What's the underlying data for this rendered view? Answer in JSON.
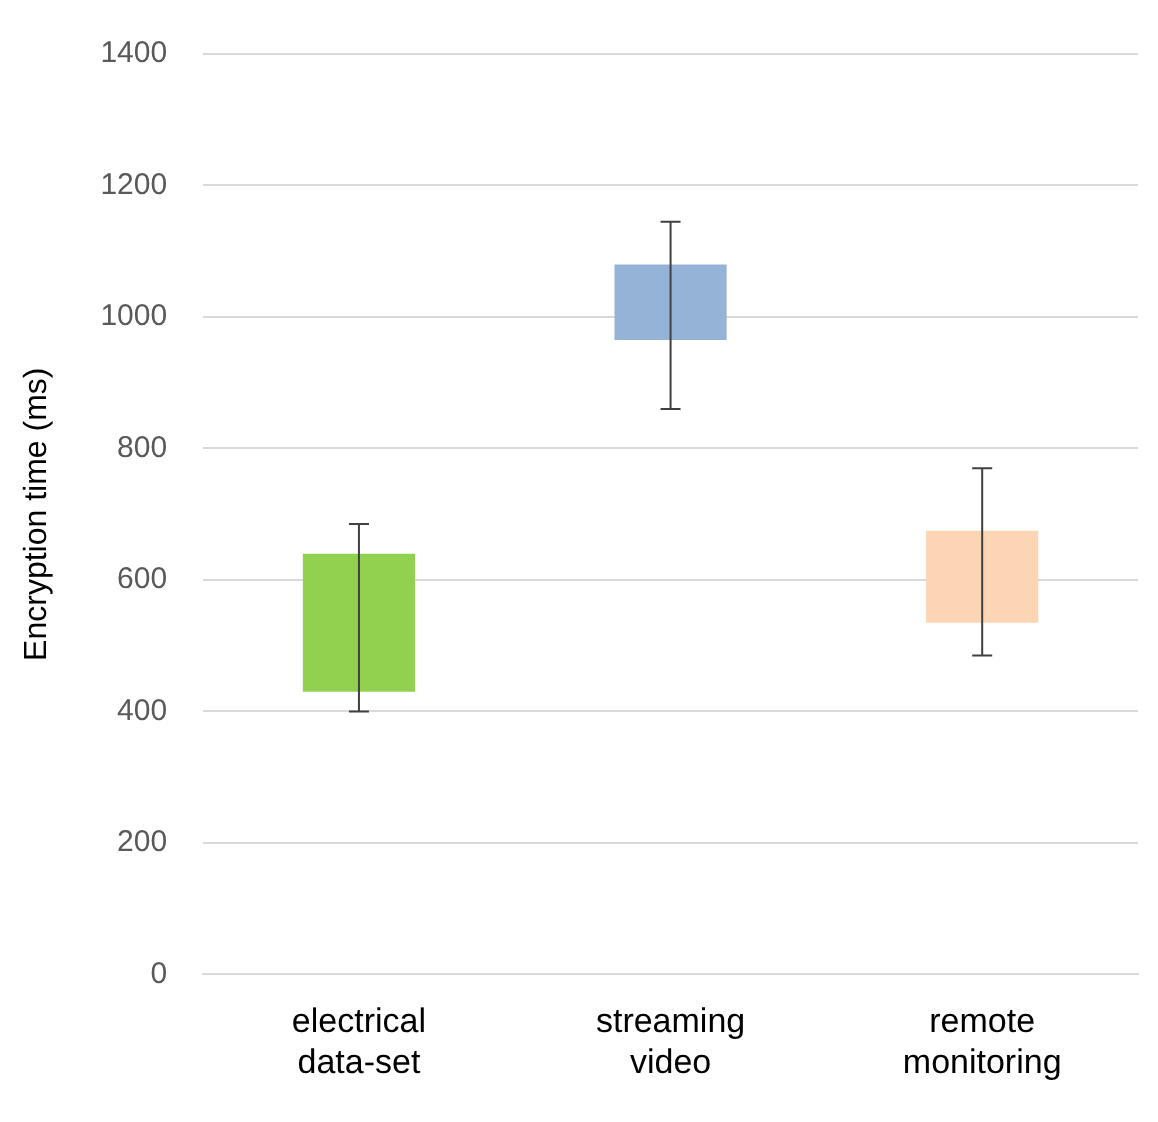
{
  "chart_data": {
    "type": "bar",
    "ylabel": "Encryption time (ms)",
    "categories": [
      "electrical data-set",
      "streaming video",
      "remote monitoring"
    ],
    "base": [
      430,
      965,
      535
    ],
    "values": [
      210,
      115,
      140
    ],
    "colors": [
      "#92d050",
      "#95b3d7",
      "#fcd5b4"
    ],
    "errors": [
      [
        400,
        685
      ],
      [
        860,
        1145
      ],
      [
        485,
        770
      ]
    ],
    "ylim": [
      0,
      1400
    ],
    "yticks": [
      0,
      200,
      400,
      600,
      800,
      1000,
      1200,
      1400
    ],
    "grid": "y",
    "legend": false
  }
}
